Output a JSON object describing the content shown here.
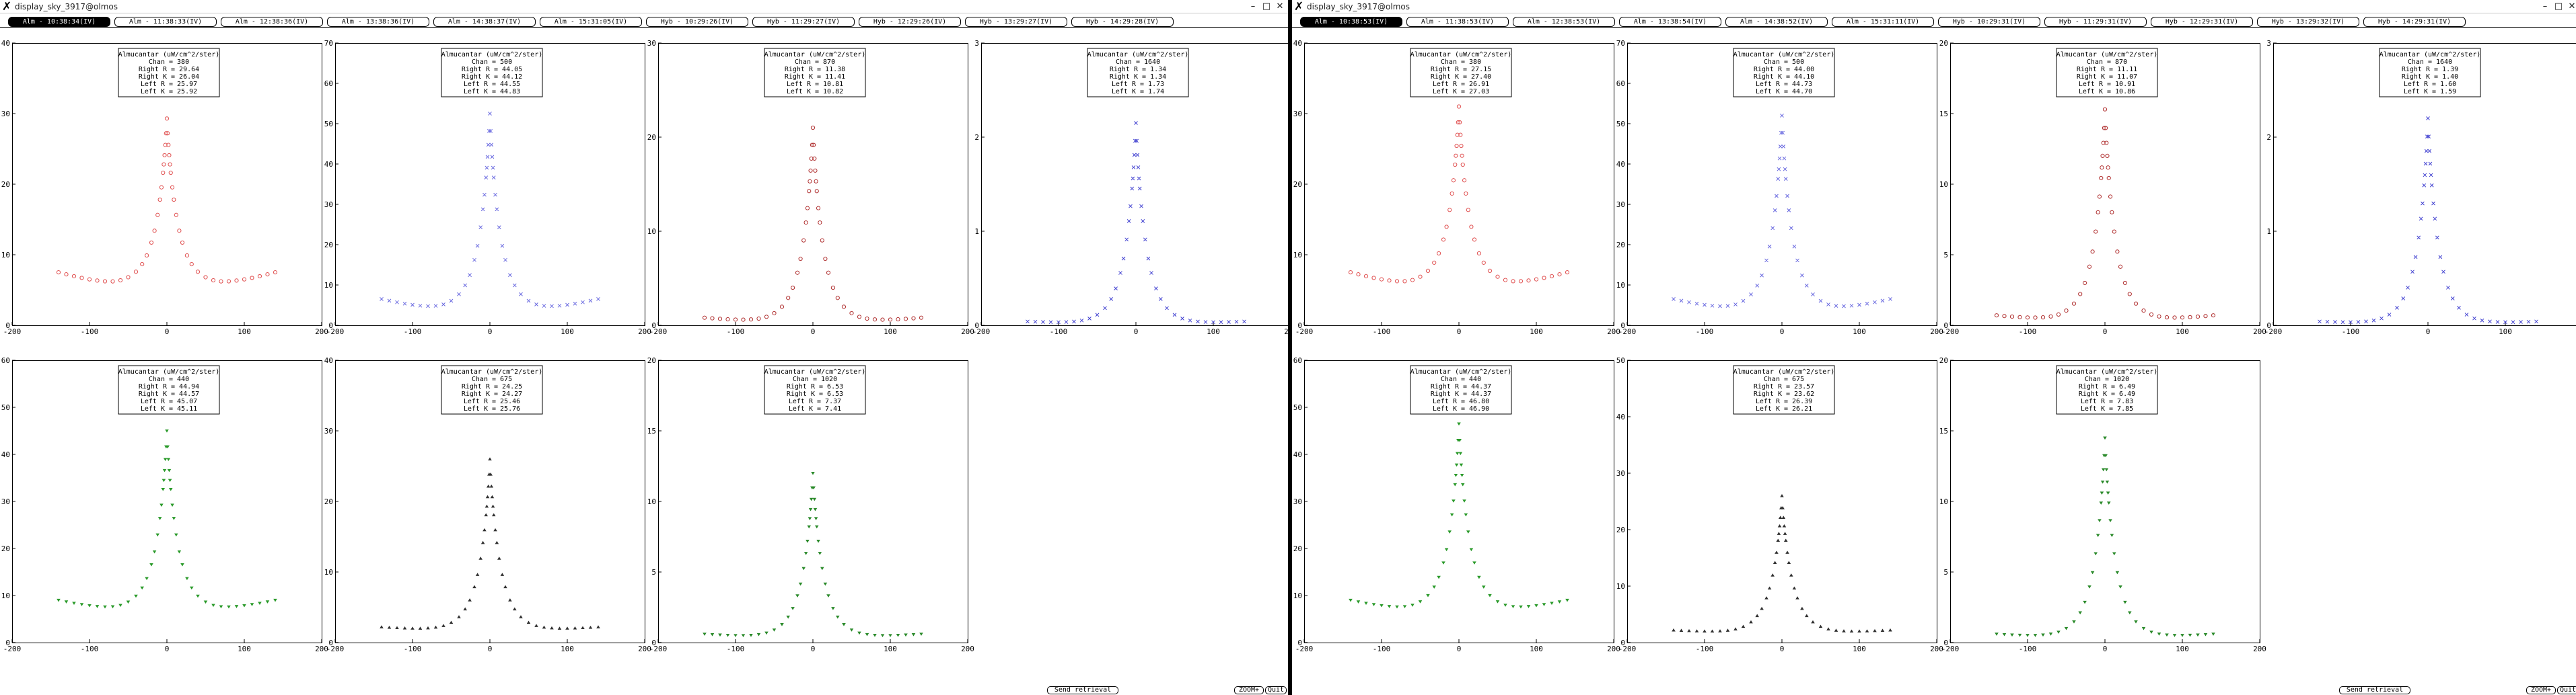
{
  "windows": [
    {
      "title": "display_sky_3917@olmos",
      "tabs": [
        {
          "label": "Alm - 10:38:34(IV)",
          "active": true
        },
        {
          "label": "Alm - 11:38:33(IV)",
          "active": false
        },
        {
          "label": "Alm - 12:38:36(IV)",
          "active": false
        },
        {
          "label": "Alm - 13:38:36(IV)",
          "active": false
        },
        {
          "label": "Alm - 14:38:37(IV)",
          "active": false
        },
        {
          "label": "Alm - 15:31:05(IV)",
          "active": false
        },
        {
          "label": "Hyb - 10:29:26(IV)",
          "active": false
        },
        {
          "label": "Hyb - 11:29:27(IV)",
          "active": false
        },
        {
          "label": "Hyb - 12:29:26(IV)",
          "active": false
        },
        {
          "label": "Hyb - 13:29:27(IV)",
          "active": false
        },
        {
          "label": "Hyb - 14:29:28(IV)",
          "active": false
        }
      ],
      "charts": [
        {
          "type": "scatter",
          "legend": [
            "Almucantar (uW/cm^2/ster)",
            "Chan = 380",
            "Right R = 29.64",
            "Right K = 26.04",
            "Left R = 25.97",
            "Left K = 25.92"
          ],
          "color": "#e05050",
          "marker": "circle",
          "xlim": [
            -200,
            200
          ],
          "ylim": [
            0,
            40
          ],
          "yticks": [
            0,
            10,
            20,
            30,
            40
          ],
          "xticks": [
            -200,
            -100,
            0,
            100,
            200
          ],
          "peak": 29.3,
          "wing": 7.5,
          "min": 5.8
        },
        {
          "type": "scatter",
          "legend": [
            "Almucantar (uW/cm^2/ster)",
            "Chan = 500",
            "Right R = 44.05",
            "Right K = 44.12",
            "Left R = 44.55",
            "Left K = 44.83"
          ],
          "color": "#6a6ae0",
          "marker": "x",
          "xlim": [
            -200,
            200
          ],
          "ylim": [
            0,
            70
          ],
          "yticks": [
            0,
            10,
            20,
            30,
            40,
            50,
            60,
            70
          ],
          "xticks": [
            -200,
            -100,
            0,
            100,
            200
          ],
          "peak": 52.5,
          "wing": 6.5,
          "min": 4.0
        },
        {
          "type": "scatter",
          "legend": [
            "Almucantar (uW/cm^2/ster)",
            "Chan = 870",
            "Right R = 11.38",
            "Right K = 11.41",
            "Left R = 10.81",
            "Left K = 10.82"
          ],
          "color": "#b03030",
          "marker": "circle",
          "xlim": [
            -200,
            200
          ],
          "ylim": [
            0,
            30
          ],
          "yticks": [
            0,
            10,
            20,
            30
          ],
          "xticks": [
            -200,
            -100,
            0,
            100,
            200
          ],
          "peak": 21.0,
          "wing": 0.8,
          "min": 0.4
        },
        {
          "type": "scatter",
          "legend": [
            "Almucantar (uW/cm^2/ster)",
            "Chan = 1640",
            "Right R = 1.34",
            "Right K = 1.34",
            "Left R = 1.73",
            "Left K = 1.74"
          ],
          "color": "#4040d0",
          "marker": "x",
          "xlim": [
            -200,
            200
          ],
          "ylim": [
            0,
            3
          ],
          "yticks": [
            0,
            1,
            2,
            3
          ],
          "xticks": [
            -200,
            -100,
            0,
            100,
            200
          ],
          "peak": 2.15,
          "wing": 0.04,
          "min": 0.02
        },
        {
          "type": "scatter",
          "legend": [
            "Almucantar (uW/cm^2/ster)",
            "Chan = 440",
            "Right R = 44.94",
            "Right K = 44.57",
            "Left R = 45.07",
            "Left K = 45.11"
          ],
          "color": "#2a9a2a",
          "marker": "tri-down",
          "xlim": [
            -200,
            200
          ],
          "ylim": [
            0,
            60
          ],
          "yticks": [
            0,
            10,
            20,
            30,
            40,
            50,
            60
          ],
          "xticks": [
            -200,
            -100,
            0,
            100,
            200
          ],
          "peak": 45.0,
          "wing": 9.0,
          "min": 7.0
        },
        {
          "type": "scatter",
          "legend": [
            "Almucantar (uW/cm^2/ster)",
            "Chan = 675",
            "Right R = 24.25",
            "Right K = 24.27",
            "Left R = 25.46",
            "Left K = 25.76"
          ],
          "color": "#303030",
          "marker": "tri-up",
          "xlim": [
            -200,
            200
          ],
          "ylim": [
            0,
            40
          ],
          "yticks": [
            0,
            10,
            20,
            30,
            40
          ],
          "xticks": [
            -200,
            -100,
            0,
            100,
            200
          ],
          "peak": 26.0,
          "wing": 2.2,
          "min": 1.8
        },
        {
          "type": "scatter",
          "legend": [
            "Almucantar (uW/cm^2/ster)",
            "Chan = 1020",
            "Right R = 6.53",
            "Right K = 6.53",
            "Left R = 7.37",
            "Left K = 7.41"
          ],
          "color": "#2a8a2a",
          "marker": "tri-down",
          "xlim": [
            -200,
            200
          ],
          "ylim": [
            0,
            20
          ],
          "yticks": [
            0,
            5,
            10,
            15,
            20
          ],
          "xticks": [
            -200,
            -100,
            0,
            100,
            200
          ],
          "peak": 12.0,
          "wing": 0.6,
          "min": 0.4
        }
      ],
      "buttons": {
        "send": "Send retrieval",
        "zoom": "ZOOM+",
        "quit": "Quit"
      }
    },
    {
      "title": "display_sky_3917@olmos",
      "tabs": [
        {
          "label": "Alm - 10:38:53(IV)",
          "active": true
        },
        {
          "label": "Alm - 11:38:53(IV)",
          "active": false
        },
        {
          "label": "Alm - 12:38:53(IV)",
          "active": false
        },
        {
          "label": "Alm - 13:38:54(IV)",
          "active": false
        },
        {
          "label": "Alm - 14:38:52(IV)",
          "active": false
        },
        {
          "label": "Alm - 15:31:11(IV)",
          "active": false
        },
        {
          "label": "Hyb - 10:29:31(IV)",
          "active": false
        },
        {
          "label": "Hyb - 11:29:31(IV)",
          "active": false
        },
        {
          "label": "Hyb - 12:29:31(IV)",
          "active": false
        },
        {
          "label": "Hyb - 13:29:32(IV)",
          "active": false
        },
        {
          "label": "Hyb - 14:29:31(IV)",
          "active": false
        }
      ],
      "charts": [
        {
          "type": "scatter",
          "legend": [
            "Almucantar (uW/cm^2/ster)",
            "Chan = 380",
            "Right R = 27.15",
            "Right K = 27.40",
            "Left R = 26.91",
            "Left K = 27.03"
          ],
          "color": "#e05050",
          "marker": "circle",
          "xlim": [
            -200,
            200
          ],
          "ylim": [
            0,
            40
          ],
          "yticks": [
            0,
            10,
            20,
            30,
            40
          ],
          "xticks": [
            -200,
            -100,
            0,
            100,
            200
          ],
          "peak": 31.0,
          "wing": 7.5,
          "min": 5.8
        },
        {
          "type": "scatter",
          "legend": [
            "Almucantar (uW/cm^2/ster)",
            "Chan = 500",
            "Right R = 44.00",
            "Right K = 44.10",
            "Left R = 44.73",
            "Left K = 44.70"
          ],
          "color": "#6a6ae0",
          "marker": "x",
          "xlim": [
            -200,
            200
          ],
          "ylim": [
            0,
            70
          ],
          "yticks": [
            0,
            10,
            20,
            30,
            40,
            50,
            60,
            70
          ],
          "xticks": [
            -200,
            -100,
            0,
            100,
            200
          ],
          "peak": 52.0,
          "wing": 6.5,
          "min": 4.0
        },
        {
          "type": "scatter",
          "legend": [
            "Almucantar (uW/cm^2/ster)",
            "Chan = 870",
            "Right R = 11.11",
            "Right K = 11.07",
            "Left R = 10.91",
            "Left K = 10.86"
          ],
          "color": "#b03030",
          "marker": "circle",
          "xlim": [
            -200,
            200
          ],
          "ylim": [
            0,
            20
          ],
          "yticks": [
            0,
            5,
            10,
            15,
            20
          ],
          "xticks": [
            -200,
            -100,
            0,
            100,
            200
          ],
          "peak": 15.3,
          "wing": 0.7,
          "min": 0.4
        },
        {
          "type": "scatter",
          "legend": [
            "Almucantar (uW/cm^2/ster)",
            "Chan = 1640",
            "Right R = 1.39",
            "Right K = 1.40",
            "Left R = 1.60",
            "Left K = 1.59"
          ],
          "color": "#4040d0",
          "marker": "x",
          "xlim": [
            -200,
            200
          ],
          "ylim": [
            0,
            3
          ],
          "yticks": [
            0,
            1,
            2,
            3
          ],
          "xticks": [
            -200,
            -100,
            0,
            100,
            200
          ],
          "peak": 2.2,
          "wing": 0.04,
          "min": 0.02
        },
        {
          "type": "scatter",
          "legend": [
            "Almucantar (uW/cm^2/ster)",
            "Chan = 440",
            "Right R = 44.37",
            "Right K = 44.37",
            "Left R = 46.80",
            "Left K = 46.90"
          ],
          "color": "#2a9a2a",
          "marker": "tri-down",
          "xlim": [
            -200,
            200
          ],
          "ylim": [
            0,
            60
          ],
          "yticks": [
            0,
            10,
            20,
            30,
            40,
            50,
            60
          ],
          "xticks": [
            -200,
            -100,
            0,
            100,
            200
          ],
          "peak": 46.5,
          "wing": 9.0,
          "min": 7.0
        },
        {
          "type": "scatter",
          "legend": [
            "Almucantar (uW/cm^2/ster)",
            "Chan = 675",
            "Right R = 23.57",
            "Right K = 23.62",
            "Left R = 26.39",
            "Left K = 26.21"
          ],
          "color": "#303030",
          "marker": "tri-up",
          "xlim": [
            -200,
            200
          ],
          "ylim": [
            0,
            50
          ],
          "yticks": [
            0,
            10,
            20,
            30,
            40,
            50
          ],
          "xticks": [
            -200,
            -100,
            0,
            100,
            200
          ],
          "peak": 26.0,
          "wing": 2.2,
          "min": 1.8
        },
        {
          "type": "scatter",
          "legend": [
            "Almucantar (uW/cm^2/ster)",
            "Chan = 1020",
            "Right R = 6.49",
            "Right K = 6.49",
            "Left R = 7.83",
            "Left K = 7.85"
          ],
          "color": "#2a8a2a",
          "marker": "tri-down",
          "xlim": [
            -200,
            200
          ],
          "ylim": [
            0,
            20
          ],
          "yticks": [
            0,
            5,
            10,
            15,
            20
          ],
          "xticks": [
            -200,
            -100,
            0,
            100,
            200
          ],
          "peak": 14.5,
          "wing": 0.6,
          "min": 0.4
        }
      ],
      "buttons": {
        "send": "Send retrieval",
        "zoom": "ZOOM+",
        "quit": "Quit"
      }
    }
  ],
  "icons": {
    "app": "x-logo-icon",
    "minimize": "minimize-icon",
    "maximize": "maximize-icon",
    "close": "close-icon"
  }
}
